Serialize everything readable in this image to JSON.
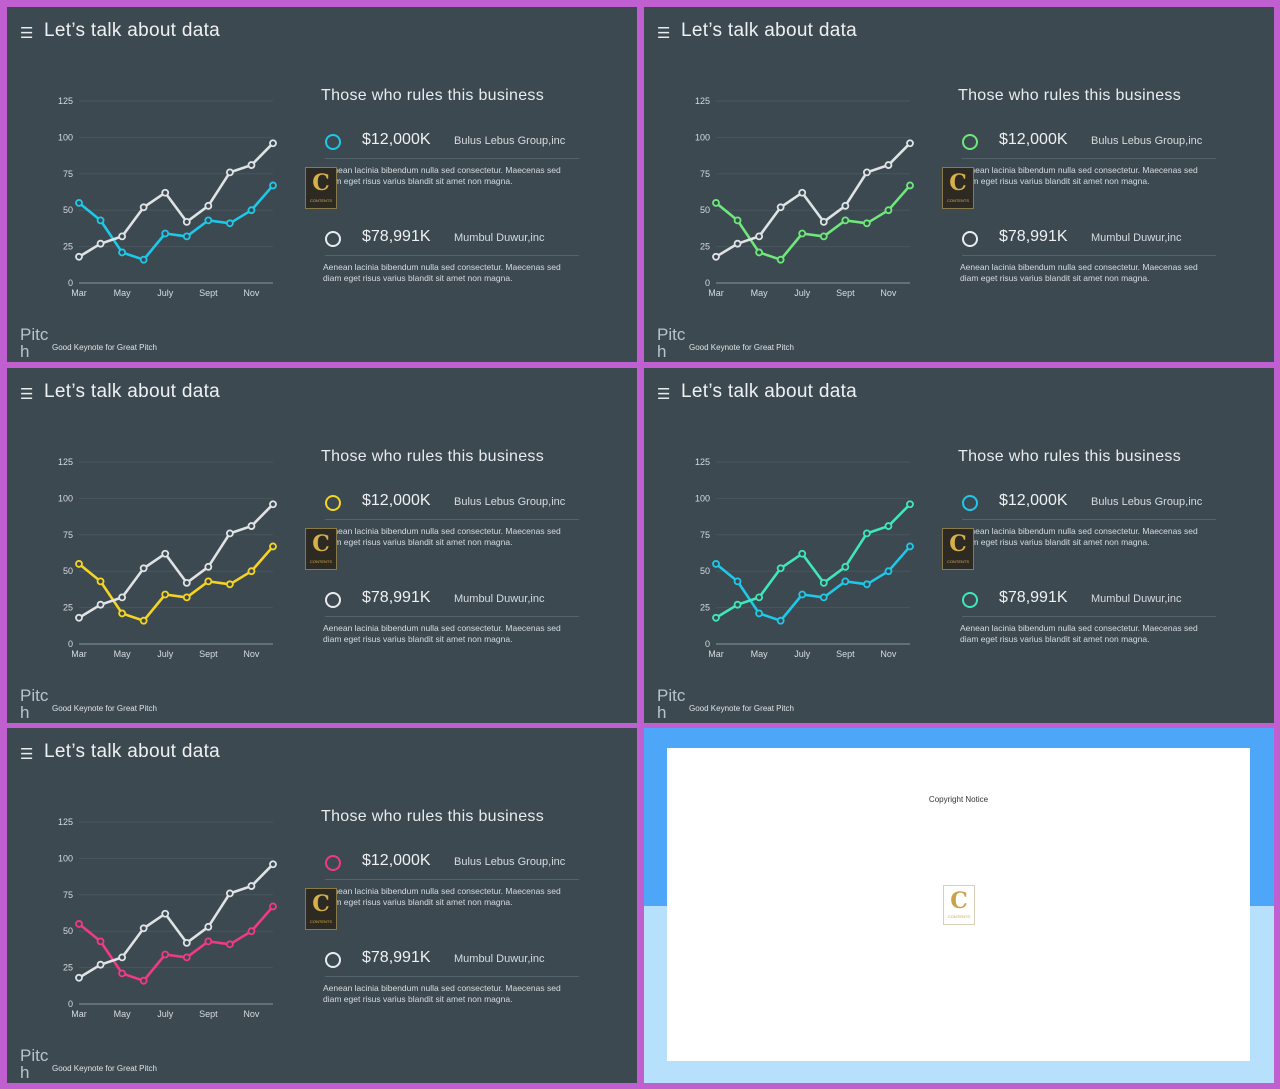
{
  "slide": {
    "title": "Let’s talk about data",
    "heading": "Those who rules this business",
    "entries": [
      {
        "amount": "$12,000K",
        "company": "Bulus Lebus Group,inc",
        "description": "Aenean lacinia bibendum nulla sed consectetur. Maecenas sed diam eget risus varius blandit sit amet non magna."
      },
      {
        "amount": "$78,991K",
        "company": "Mumbul Duwur,inc",
        "description": "Aenean lacinia bibendum nulla sed consectetur. Maecenas sed diam eget risus varius blandit sit amet non magna."
      }
    ],
    "brand": "Pitch",
    "tagline": "Good Keynote for Great Pitch",
    "logo_letter": "C",
    "logo_text": "CONTENTS"
  },
  "variants": [
    {
      "accent": "#1ec8e8",
      "ring1": "#1ec8e8",
      "ring2": "#e8ecef",
      "series2_color": "#dfe3e6"
    },
    {
      "accent": "#6ee87a",
      "ring1": "#6ee87a",
      "ring2": "#e8ecef",
      "series2_color": "#dfe3e6"
    },
    {
      "accent": "#f5d422",
      "ring1": "#f5d422",
      "ring2": "#e8ecef",
      "series2_color": "#dfe3e6"
    },
    {
      "accent": "#1ec8e8",
      "ring1": "#1ec8e8",
      "ring2": "#3fe8b8",
      "series2_color": "#3fe8b8"
    },
    {
      "accent": "#f03a84",
      "ring1": "#f03a84",
      "ring2": "#e8ecef",
      "series2_color": "#dfe3e6"
    }
  ],
  "chart_data": {
    "type": "line",
    "x": [
      1,
      2,
      3,
      4,
      5,
      6,
      7,
      8,
      9,
      10
    ],
    "x_tick_labels": [
      {
        "x": 1,
        "label": "Mar"
      },
      {
        "x": 3,
        "label": "May"
      },
      {
        "x": 5,
        "label": "July"
      },
      {
        "x": 7,
        "label": "Sept"
      },
      {
        "x": 9,
        "label": "Nov"
      }
    ],
    "y_ticks": [
      0,
      25,
      50,
      75,
      100,
      125
    ],
    "ylim": [
      0,
      125
    ],
    "series": [
      {
        "values": [
          55,
          43,
          21,
          16,
          34,
          32,
          43,
          41,
          50,
          67
        ]
      },
      {
        "values": [
          18,
          27,
          32,
          52,
          62,
          42,
          53,
          76,
          81,
          96
        ]
      }
    ]
  },
  "copyright": {
    "title": "Copyright Notice",
    "logo_letter": "C",
    "logo_text": "CONTENTS"
  }
}
